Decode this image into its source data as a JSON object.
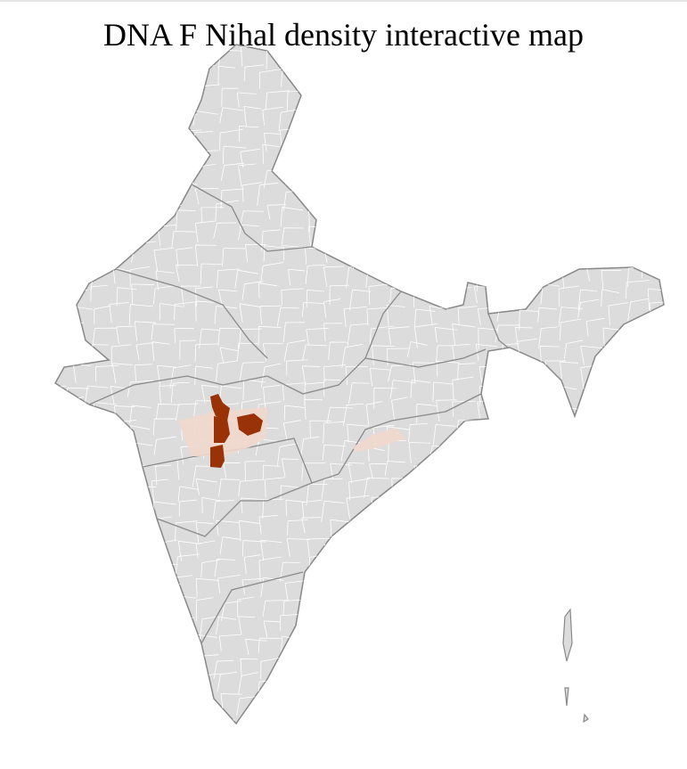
{
  "title": "DNA F Nihal density interactive map",
  "colors": {
    "land": "#dcdcdc",
    "district_border": "#ffffff",
    "state_border": "#888888",
    "high_density": "#9a3207",
    "low_density": "#f1d7cc"
  }
}
